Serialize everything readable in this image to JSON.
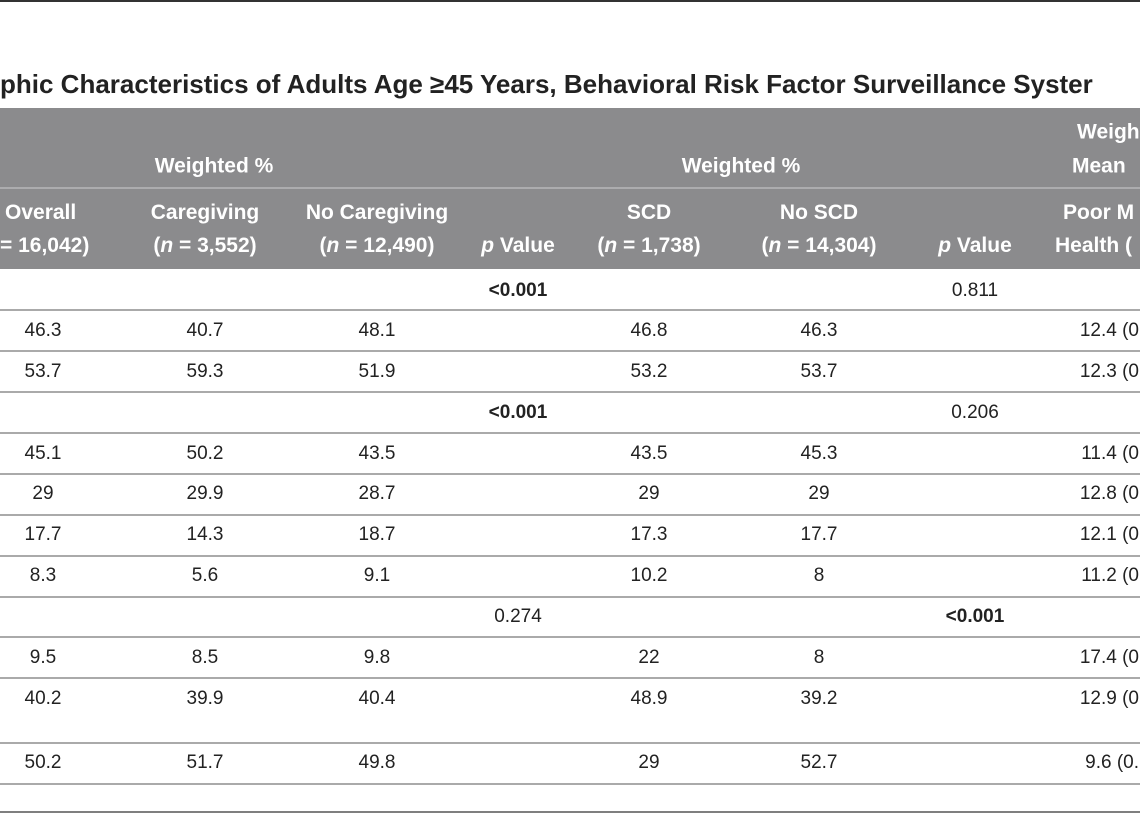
{
  "title": "phic Characteristics of Adults Age ≥45 Years, Behavioral Risk Factor Surveillance Syster",
  "header": {
    "groups": [
      "Weighted %",
      "Weighted %"
    ],
    "last_group": [
      "Weigh",
      "Mean"
    ],
    "columns": [
      [
        [
          "Overall"
        ],
        [
          "= 16,042)"
        ]
      ],
      [
        [
          "Caregiving"
        ],
        [
          "(",
          "n",
          " = 3,552)"
        ]
      ],
      [
        [
          "No Caregiving"
        ],
        [
          "(",
          "n",
          " = 12,490)"
        ]
      ],
      [
        [
          "p",
          " Value"
        ]
      ],
      [
        [
          "SCD"
        ],
        [
          "(",
          "n",
          " = 1,738)"
        ]
      ],
      [
        [
          "No SCD"
        ],
        [
          "(",
          "n",
          " = 14,304)"
        ]
      ],
      [
        [
          "p",
          " Value"
        ]
      ],
      [
        [
          "Poor M"
        ],
        [
          "Health ("
        ]
      ]
    ]
  },
  "table": {
    "rows": [
      [
        null,
        null,
        null,
        "<0.001",
        null,
        null,
        "0.811",
        null
      ],
      [
        "46.3",
        "40.7",
        "48.1",
        null,
        "46.8",
        "46.3",
        null,
        "12.4 (0"
      ],
      [
        "53.7",
        "59.3",
        "51.9",
        null,
        "53.2",
        "53.7",
        null,
        "12.3 (0"
      ],
      [
        null,
        null,
        null,
        "<0.001",
        null,
        null,
        "0.206",
        null
      ],
      [
        "45.1",
        "50.2",
        "43.5",
        null,
        "43.5",
        "45.3",
        null,
        "11.4 (0"
      ],
      [
        "29",
        "29.9",
        "28.7",
        null,
        "29",
        "29",
        null,
        "12.8 (0"
      ],
      [
        "17.7",
        "14.3",
        "18.7",
        null,
        "17.3",
        "17.7",
        null,
        "12.1 (0"
      ],
      [
        "8.3",
        "5.6",
        "9.1",
        null,
        "10.2",
        "8",
        null,
        "11.2 (0"
      ],
      [
        null,
        null,
        null,
        "0.274",
        null,
        null,
        "<0.001",
        null
      ],
      [
        "9.5",
        "8.5",
        "9.8",
        null,
        "22",
        "8",
        null,
        "17.4 (0"
      ],
      [
        "40.2",
        "39.9",
        "40.4",
        null,
        "48.9",
        "39.2",
        null,
        "12.9 (0"
      ],
      [
        "50.2",
        "51.7",
        "49.8",
        null,
        "29",
        "52.7",
        null,
        "9.6 (0."
      ]
    ]
  }
}
